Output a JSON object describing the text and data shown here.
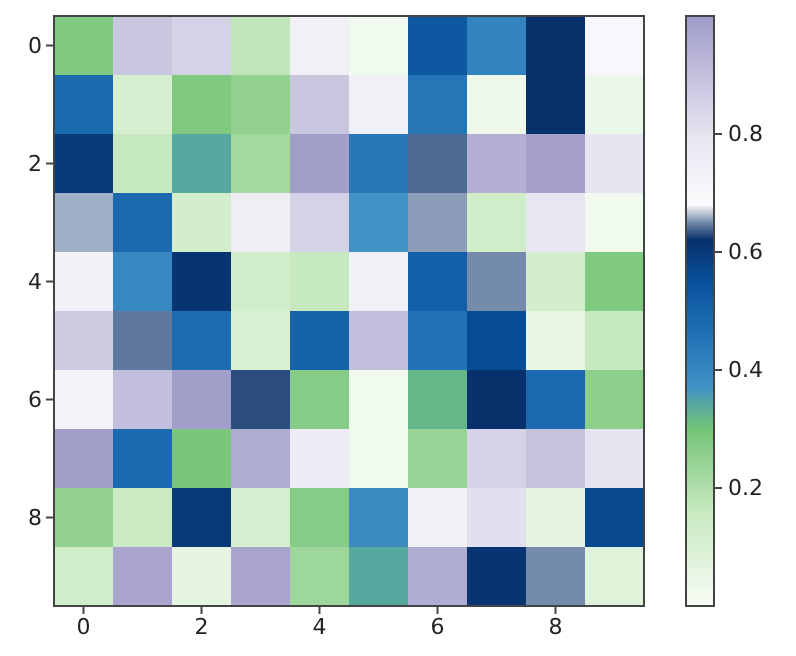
{
  "chart_data": {
    "type": "heatmap",
    "categories": [
      "0",
      null,
      "2",
      null,
      "4",
      null,
      "6",
      null,
      "8",
      null
    ],
    "y_categories": [
      "0",
      null,
      "2",
      null,
      "4",
      null,
      "6",
      null,
      "8",
      null
    ],
    "cells": [
      [
        0.28,
        0.88,
        0.85,
        0.17,
        0.74,
        0.02,
        0.53,
        0.41,
        0.62,
        0.7
      ],
      [
        0.48,
        0.11,
        0.28,
        0.25,
        0.88,
        0.74,
        0.45,
        0.03,
        0.62,
        0.04
      ],
      [
        0.6,
        0.16,
        0.34,
        0.22,
        0.99,
        0.44,
        0.64,
        0.94,
        0.98,
        0.8
      ],
      [
        0.66,
        0.48,
        0.12,
        0.75,
        0.85,
        0.37,
        0.655,
        0.13,
        0.79,
        0.02
      ],
      [
        0.73,
        0.4,
        0.61,
        0.13,
        0.16,
        0.74,
        0.51,
        0.65,
        0.12,
        0.28
      ],
      [
        0.87,
        0.645,
        0.47,
        0.1,
        0.5,
        0.9,
        0.46,
        0.56,
        0.05,
        0.16
      ],
      [
        0.72,
        0.9,
        0.99,
        0.63,
        0.27,
        0.02,
        0.32,
        0.62,
        0.48,
        0.26
      ],
      [
        0.99,
        0.48,
        0.29,
        0.95,
        0.76,
        0.02,
        0.24,
        0.85,
        0.89,
        0.8
      ],
      [
        0.25,
        0.15,
        0.6,
        0.11,
        0.27,
        0.39,
        0.73,
        0.81,
        0.06,
        0.57
      ],
      [
        0.13,
        0.97,
        0.06,
        0.97,
        0.23,
        0.34,
        0.95,
        0.61,
        0.65,
        0.08
      ]
    ],
    "clim": [
      0,
      1
    ],
    "cticks": [
      0.2,
      0.4,
      0.6,
      0.8
    ]
  }
}
